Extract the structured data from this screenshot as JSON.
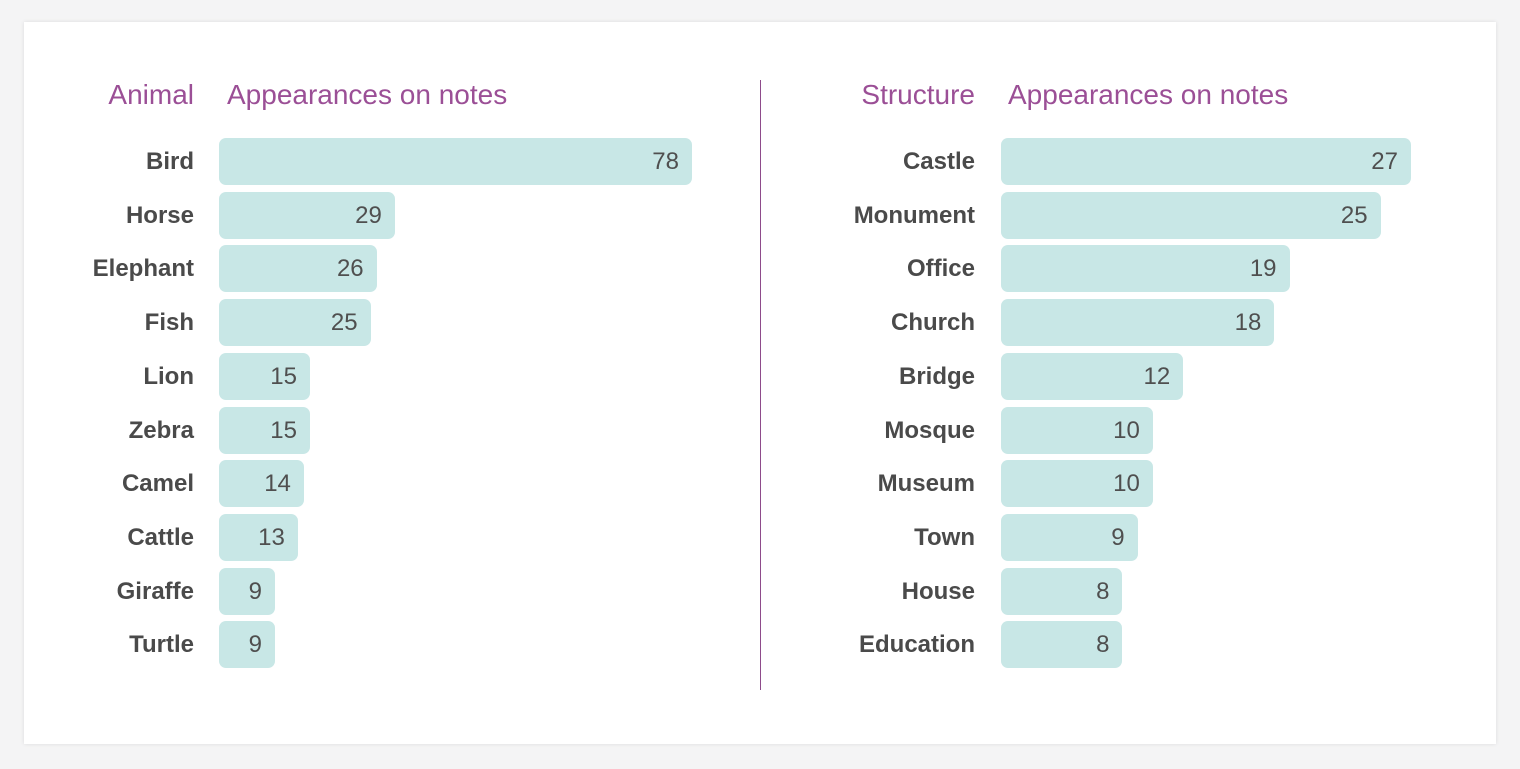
{
  "chart_data": [
    {
      "type": "bar",
      "orientation": "horizontal",
      "category_header": "Animal",
      "value_header": "Appearances on notes",
      "categories": [
        "Bird",
        "Horse",
        "Elephant",
        "Fish",
        "Lion",
        "Zebra",
        "Camel",
        "Cattle",
        "Giraffe",
        "Turtle"
      ],
      "values": [
        78,
        29,
        26,
        25,
        15,
        15,
        14,
        13,
        9,
        9
      ],
      "xlim": [
        0,
        78
      ],
      "grid": false,
      "data_labels": true
    },
    {
      "type": "bar",
      "orientation": "horizontal",
      "category_header": "Structure",
      "value_header": "Appearances on notes",
      "categories": [
        "Castle",
        "Monument",
        "Office",
        "Church",
        "Bridge",
        "Mosque",
        "Museum",
        "Town",
        "House",
        "Education"
      ],
      "values": [
        27,
        25,
        19,
        18,
        12,
        10,
        10,
        9,
        8,
        8
      ],
      "xlim": [
        0,
        27
      ],
      "grid": false,
      "data_labels": true
    }
  ],
  "colors": {
    "header": "#9b4f96",
    "bar_fill": "#c8e7e6",
    "label_text": "#4a4a4a",
    "divider": "#8e4b8b"
  }
}
